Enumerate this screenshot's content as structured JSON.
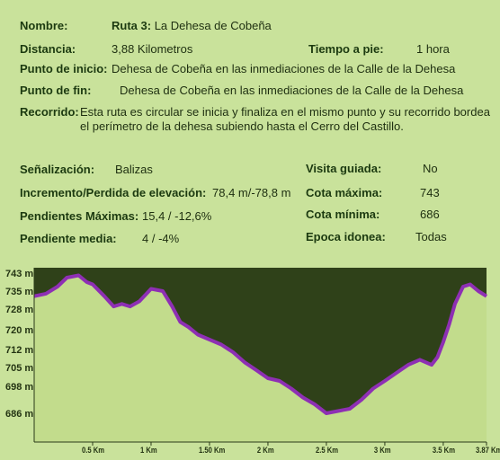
{
  "info": {
    "nombre_label": "Nombre:",
    "ruta_bold": "Ruta 3:",
    "ruta_name": "La Dehesa de Cobeña",
    "distancia_label": "Distancia:",
    "distancia_value": "3,88 Kilometros",
    "tiempo_label": "Tiempo a pie:",
    "tiempo_value": "1 hora",
    "inicio_label": "Punto de inicio:",
    "inicio_value": "Dehesa de Cobeña en las inmediaciones de la Calle de la Dehesa",
    "fin_label": "Punto de fin:",
    "fin_value": "Dehesa de Cobeña en las inmediaciones de la Calle de la Dehesa",
    "recorrido_label": "Recorrido:",
    "recorrido_value": "Esta ruta es circular se inicia y finaliza en el mismo punto y su recorrido bordea el perímetro de la dehesa subiendo hasta el Cerro del Castillo."
  },
  "stats": {
    "senal_label": "Señalización:",
    "senal_value": "Balizas",
    "incremento_label": "Incremento/Perdida de elevación:",
    "incremento_value": "78,4 m/-78,8 m",
    "pend_max_label": "Pendientes Máximas:",
    "pend_max_value": "15,4 / -12,6%",
    "pend_media_label": "Pendiente media:",
    "pend_media_value": "4 / -4%",
    "visita_label": "Visita guiada:",
    "visita_value": "No",
    "cota_max_label": "Cota máxima:",
    "cota_max_value": "743",
    "cota_min_label": "Cota mínima:",
    "cota_min_value": "686",
    "epoca_label": "Epoca idonea:",
    "epoca_value": "Todas"
  },
  "colors": {
    "background": "#c9e29b",
    "fill_ground": "#c2dc8c",
    "fill_sky": "#2f4119",
    "line": "#8e2fb4"
  },
  "chart_data": {
    "type": "area",
    "x_ticks": [
      "0.5 Km",
      "1 Km",
      "1.50 Km",
      "2 Km",
      "2.5 Km",
      "3 Km",
      "3.5 Km",
      "3.87 Km"
    ],
    "x_tick_values": [
      0.5,
      1.0,
      1.5,
      2.0,
      2.5,
      3.0,
      3.5,
      3.87
    ],
    "y_ticks": [
      "743 m",
      "735 m",
      "728 m",
      "720 m",
      "712 m",
      "705 m",
      "698 m",
      "686 m"
    ],
    "y_tick_values": [
      743,
      735,
      728,
      720,
      712,
      705,
      698,
      686
    ],
    "xlim": [
      0,
      3.87
    ],
    "x": [
      0,
      0.1,
      0.2,
      0.28,
      0.38,
      0.45,
      0.5,
      0.6,
      0.68,
      0.75,
      0.82,
      0.9,
      1.0,
      1.1,
      1.18,
      1.25,
      1.32,
      1.4,
      1.5,
      1.6,
      1.7,
      1.8,
      1.9,
      2.0,
      2.1,
      2.2,
      2.3,
      2.4,
      2.5,
      2.6,
      2.7,
      2.8,
      2.9,
      3.0,
      3.1,
      3.2,
      3.3,
      3.4,
      3.45,
      3.5,
      3.55,
      3.6,
      3.67,
      3.73,
      3.8,
      3.87
    ],
    "y": [
      733,
      734,
      737,
      741,
      742,
      739,
      738,
      733,
      729,
      730,
      729,
      731,
      736,
      735,
      729,
      723,
      721,
      718,
      716,
      714,
      711,
      707,
      704,
      701,
      700,
      697,
      693,
      690,
      686,
      687,
      688,
      692,
      697,
      700,
      703,
      706,
      708,
      706,
      709,
      715,
      722,
      730,
      737,
      738,
      735,
      733
    ]
  }
}
